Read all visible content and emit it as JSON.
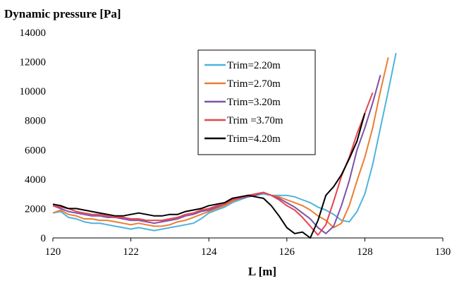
{
  "chart_data": {
    "type": "line",
    "title": "Dynamic pressure [Pa]",
    "xlabel": "L [m]",
    "ylabel": "",
    "xlim": [
      120,
      130
    ],
    "ylim": [
      0,
      14000
    ],
    "xticks": [
      120,
      122,
      124,
      126,
      128,
      130
    ],
    "yticks": [
      0,
      2000,
      4000,
      6000,
      8000,
      10000,
      12000,
      14000
    ],
    "grid": false,
    "legend_position": "top-center",
    "series": [
      {
        "name": "Trim=2.20m",
        "color": "#4fb3de",
        "points": [
          [
            120.0,
            1700
          ],
          [
            120.2,
            1800
          ],
          [
            120.4,
            1400
          ],
          [
            120.6,
            1300
          ],
          [
            120.8,
            1100
          ],
          [
            121.0,
            1000
          ],
          [
            121.2,
            1000
          ],
          [
            121.4,
            900
          ],
          [
            121.6,
            800
          ],
          [
            121.8,
            700
          ],
          [
            122.0,
            600
          ],
          [
            122.2,
            700
          ],
          [
            122.4,
            600
          ],
          [
            122.6,
            500
          ],
          [
            122.8,
            600
          ],
          [
            123.0,
            700
          ],
          [
            123.2,
            800
          ],
          [
            123.4,
            900
          ],
          [
            123.6,
            1000
          ],
          [
            123.8,
            1300
          ],
          [
            124.0,
            1700
          ],
          [
            124.2,
            1900
          ],
          [
            124.4,
            2100
          ],
          [
            124.6,
            2400
          ],
          [
            124.8,
            2600
          ],
          [
            125.0,
            2800
          ],
          [
            125.2,
            2900
          ],
          [
            125.4,
            3000
          ],
          [
            125.6,
            2900
          ],
          [
            125.8,
            2900
          ],
          [
            126.0,
            2900
          ],
          [
            126.2,
            2800
          ],
          [
            126.4,
            2600
          ],
          [
            126.6,
            2400
          ],
          [
            126.8,
            2100
          ],
          [
            127.0,
            1900
          ],
          [
            127.2,
            1600
          ],
          [
            127.4,
            1200
          ],
          [
            127.6,
            1100
          ],
          [
            127.8,
            1800
          ],
          [
            128.0,
            3000
          ],
          [
            128.2,
            5000
          ],
          [
            128.4,
            7500
          ],
          [
            128.6,
            10000
          ],
          [
            128.8,
            12600
          ]
        ]
      },
      {
        "name": "Trim=2.70m",
        "color": "#ed7d31",
        "points": [
          [
            120.0,
            1700
          ],
          [
            120.2,
            1900
          ],
          [
            120.4,
            1600
          ],
          [
            120.6,
            1500
          ],
          [
            120.8,
            1300
          ],
          [
            121.0,
            1300
          ],
          [
            121.2,
            1200
          ],
          [
            121.4,
            1200
          ],
          [
            121.6,
            1100
          ],
          [
            121.8,
            1000
          ],
          [
            122.0,
            900
          ],
          [
            122.2,
            1000
          ],
          [
            122.4,
            900
          ],
          [
            122.6,
            800
          ],
          [
            122.8,
            800
          ],
          [
            123.0,
            900
          ],
          [
            123.2,
            1100
          ],
          [
            123.4,
            1200
          ],
          [
            123.6,
            1400
          ],
          [
            123.8,
            1600
          ],
          [
            124.0,
            1800
          ],
          [
            124.2,
            2000
          ],
          [
            124.4,
            2200
          ],
          [
            124.6,
            2500
          ],
          [
            124.8,
            2700
          ],
          [
            125.0,
            2800
          ],
          [
            125.2,
            3000
          ],
          [
            125.4,
            3100
          ],
          [
            125.6,
            2900
          ],
          [
            125.8,
            2800
          ],
          [
            126.0,
            2600
          ],
          [
            126.2,
            2400
          ],
          [
            126.4,
            2200
          ],
          [
            126.6,
            1900
          ],
          [
            126.8,
            1500
          ],
          [
            127.0,
            1200
          ],
          [
            127.2,
            700
          ],
          [
            127.4,
            1000
          ],
          [
            127.6,
            2200
          ],
          [
            127.8,
            3900
          ],
          [
            128.0,
            5500
          ],
          [
            128.2,
            7500
          ],
          [
            128.4,
            10000
          ],
          [
            128.6,
            12300
          ]
        ]
      },
      {
        "name": "Trim=3.20m",
        "color": "#7b52a8",
        "points": [
          [
            120.0,
            2200
          ],
          [
            120.2,
            2000
          ],
          [
            120.4,
            1800
          ],
          [
            120.6,
            1700
          ],
          [
            120.8,
            1600
          ],
          [
            121.0,
            1500
          ],
          [
            121.2,
            1500
          ],
          [
            121.4,
            1400
          ],
          [
            121.6,
            1400
          ],
          [
            121.8,
            1300
          ],
          [
            122.0,
            1200
          ],
          [
            122.2,
            1200
          ],
          [
            122.4,
            1100
          ],
          [
            122.6,
            1000
          ],
          [
            122.8,
            1100
          ],
          [
            123.0,
            1200
          ],
          [
            123.2,
            1300
          ],
          [
            123.4,
            1500
          ],
          [
            123.6,
            1600
          ],
          [
            123.8,
            1800
          ],
          [
            124.0,
            1900
          ],
          [
            124.2,
            2100
          ],
          [
            124.4,
            2300
          ],
          [
            124.6,
            2600
          ],
          [
            124.8,
            2700
          ],
          [
            125.0,
            2800
          ],
          [
            125.2,
            2900
          ],
          [
            125.4,
            3100
          ],
          [
            125.6,
            2900
          ],
          [
            125.8,
            2700
          ],
          [
            126.0,
            2400
          ],
          [
            126.2,
            2100
          ],
          [
            126.4,
            1700
          ],
          [
            126.6,
            1300
          ],
          [
            126.8,
            700
          ],
          [
            127.0,
            300
          ],
          [
            127.2,
            800
          ],
          [
            127.4,
            2200
          ],
          [
            127.6,
            3900
          ],
          [
            127.8,
            6000
          ],
          [
            128.0,
            7500
          ],
          [
            128.2,
            9200
          ],
          [
            128.4,
            11100
          ]
        ]
      },
      {
        "name": "Trim =3.70m",
        "color": "#e8434e",
        "points": [
          [
            120.0,
            2200
          ],
          [
            120.2,
            2100
          ],
          [
            120.4,
            2000
          ],
          [
            120.6,
            1800
          ],
          [
            120.8,
            1700
          ],
          [
            121.0,
            1600
          ],
          [
            121.2,
            1600
          ],
          [
            121.4,
            1500
          ],
          [
            121.6,
            1400
          ],
          [
            121.8,
            1400
          ],
          [
            122.0,
            1300
          ],
          [
            122.2,
            1300
          ],
          [
            122.4,
            1200
          ],
          [
            122.6,
            1200
          ],
          [
            122.8,
            1200
          ],
          [
            123.0,
            1300
          ],
          [
            123.2,
            1400
          ],
          [
            123.4,
            1600
          ],
          [
            123.6,
            1700
          ],
          [
            123.8,
            1900
          ],
          [
            124.0,
            2000
          ],
          [
            124.2,
            2200
          ],
          [
            124.4,
            2300
          ],
          [
            124.6,
            2600
          ],
          [
            124.8,
            2700
          ],
          [
            125.0,
            2900
          ],
          [
            125.2,
            3000
          ],
          [
            125.4,
            3100
          ],
          [
            125.6,
            2900
          ],
          [
            125.8,
            2600
          ],
          [
            126.0,
            2200
          ],
          [
            126.2,
            1900
          ],
          [
            126.4,
            1400
          ],
          [
            126.6,
            800
          ],
          [
            126.8,
            200
          ],
          [
            127.0,
            900
          ],
          [
            127.2,
            2500
          ],
          [
            127.4,
            4200
          ],
          [
            127.6,
            5500
          ],
          [
            127.8,
            7100
          ],
          [
            128.0,
            8500
          ],
          [
            128.2,
            9900
          ]
        ]
      },
      {
        "name": "Trim=4.20m",
        "color": "#000000",
        "points": [
          [
            120.0,
            2300
          ],
          [
            120.2,
            2200
          ],
          [
            120.4,
            2000
          ],
          [
            120.6,
            2000
          ],
          [
            120.8,
            1900
          ],
          [
            121.0,
            1800
          ],
          [
            121.2,
            1700
          ],
          [
            121.4,
            1600
          ],
          [
            121.6,
            1500
          ],
          [
            121.8,
            1500
          ],
          [
            122.0,
            1600
          ],
          [
            122.2,
            1700
          ],
          [
            122.4,
            1600
          ],
          [
            122.6,
            1500
          ],
          [
            122.8,
            1500
          ],
          [
            123.0,
            1600
          ],
          [
            123.2,
            1600
          ],
          [
            123.4,
            1800
          ],
          [
            123.6,
            1900
          ],
          [
            123.8,
            2000
          ],
          [
            124.0,
            2200
          ],
          [
            124.2,
            2300
          ],
          [
            124.4,
            2400
          ],
          [
            124.6,
            2700
          ],
          [
            124.8,
            2800
          ],
          [
            125.0,
            2900
          ],
          [
            125.2,
            2800
          ],
          [
            125.4,
            2700
          ],
          [
            125.6,
            2200
          ],
          [
            125.8,
            1500
          ],
          [
            126.0,
            700
          ],
          [
            126.2,
            300
          ],
          [
            126.4,
            400
          ],
          [
            126.6,
            0
          ],
          [
            126.8,
            1200
          ],
          [
            127.0,
            2900
          ],
          [
            127.2,
            3500
          ],
          [
            127.4,
            4300
          ],
          [
            127.6,
            5400
          ],
          [
            127.8,
            6600
          ],
          [
            128.0,
            8500
          ]
        ]
      }
    ]
  }
}
